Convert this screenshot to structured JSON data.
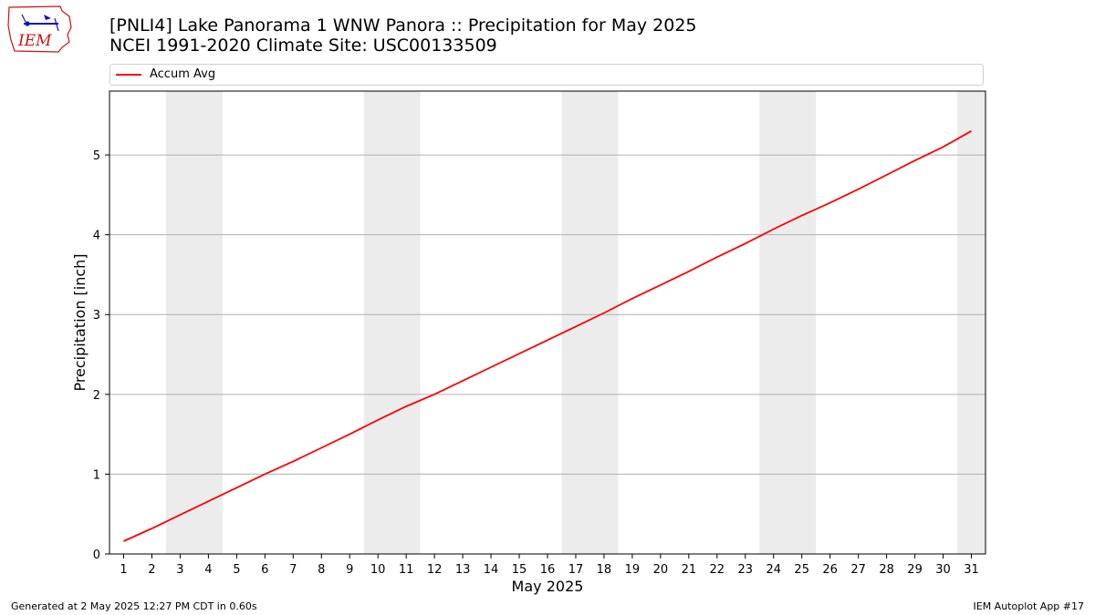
{
  "header": {
    "title_line1": "[PNLI4] Lake Panorama 1 WNW Panora :: Precipitation for May 2025",
    "title_line2": "NCEI 1991-2020 Climate Site: USC00133509"
  },
  "logo": {
    "text": "IEM",
    "icon": "iowa-state-outline-logo",
    "color": "#d01010"
  },
  "footer": {
    "generated": "Generated at 2 May 2025 12:27 PM CDT in 0.60s",
    "app": "IEM Autoplot App #17"
  },
  "colors": {
    "series": "#ff0000",
    "weekend_band": "#ececec",
    "grid": "#b0b0b0"
  },
  "chart_data": {
    "type": "line",
    "xlabel": "May 2025",
    "ylabel": "Precipitation [inch]",
    "xlim": [
      0.5,
      31.5
    ],
    "ylim": [
      0,
      5.8
    ],
    "x_ticks": [
      1,
      2,
      3,
      4,
      5,
      6,
      7,
      8,
      9,
      10,
      11,
      12,
      13,
      14,
      15,
      16,
      17,
      18,
      19,
      20,
      21,
      22,
      23,
      24,
      25,
      26,
      27,
      28,
      29,
      30,
      31
    ],
    "y_ticks": [
      0,
      1,
      2,
      3,
      4,
      5
    ],
    "grid": "horizontal",
    "legend": "top",
    "weekend_bands": [
      [
        3,
        4
      ],
      [
        10,
        11
      ],
      [
        17,
        18
      ],
      [
        24,
        25
      ],
      [
        31,
        31
      ]
    ],
    "series": [
      {
        "name": "Accum Avg",
        "color": "#ff0000",
        "x": [
          1,
          2,
          3,
          4,
          5,
          6,
          7,
          8,
          9,
          10,
          11,
          12,
          13,
          14,
          15,
          16,
          17,
          18,
          19,
          20,
          21,
          22,
          23,
          24,
          25,
          26,
          27,
          28,
          29,
          30,
          31
        ],
        "values": [
          0.16,
          0.32,
          0.49,
          0.66,
          0.83,
          1.0,
          1.16,
          1.33,
          1.5,
          1.68,
          1.85,
          2.0,
          2.17,
          2.34,
          2.51,
          2.68,
          2.85,
          3.02,
          3.2,
          3.37,
          3.54,
          3.72,
          3.89,
          4.07,
          4.24,
          4.4,
          4.57,
          4.75,
          4.93,
          5.1,
          5.3
        ]
      }
    ]
  }
}
